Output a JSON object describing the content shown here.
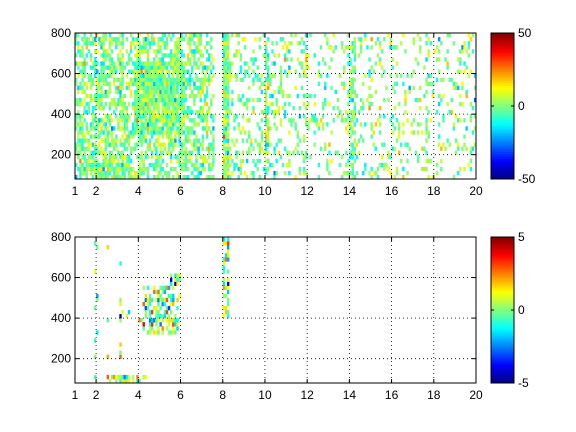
{
  "chart_data": [
    {
      "type": "heatmap",
      "title": "",
      "xlabel": "",
      "ylabel": "",
      "xlim": [
        1,
        20
      ],
      "ylim": [
        80,
        800
      ],
      "x_ticks": [
        1,
        2,
        4,
        6,
        8,
        10,
        12,
        14,
        16,
        18,
        20
      ],
      "x_tick_labels": [
        "1",
        "2",
        "4",
        "6",
        "8",
        "10",
        "12",
        "14",
        "16",
        "18",
        "20"
      ],
      "y_ticks": [
        200,
        400,
        600,
        800
      ],
      "y_tick_labels": [
        "200",
        "400",
        "600",
        "800"
      ],
      "grid": true,
      "colorbar": {
        "colormap": "jet",
        "clim": [
          -50,
          50
        ],
        "ticks": [
          -50,
          0,
          50
        ],
        "tick_labels": [
          "-50",
          "0",
          "50"
        ]
      },
      "mean_amplitude": 8,
      "regions": [
        {
          "x": [
            1.0,
            7.6
          ],
          "y": [
            80,
            800
          ],
          "density": 0.55
        },
        {
          "x": [
            3.8,
            6.2
          ],
          "y": [
            300,
            650
          ],
          "density": 0.9
        },
        {
          "x": [
            1.2,
            3.6
          ],
          "y": [
            80,
            200
          ],
          "density": 0.8
        },
        {
          "x": [
            8.0,
            9.5
          ],
          "y": [
            80,
            800
          ],
          "density": 0.25
        },
        {
          "x": [
            9.5,
            12.0
          ],
          "y": [
            80,
            800
          ],
          "density": 0.22
        },
        {
          "x": [
            12.0,
            20.0
          ],
          "y": [
            80,
            800
          ],
          "density": 0.16
        },
        {
          "x": [
            8.05,
            8.3
          ],
          "y": [
            80,
            800
          ],
          "density": 0.95
        },
        {
          "x": [
            10.0,
            10.2
          ],
          "y": [
            80,
            800
          ],
          "density": 0.6
        },
        {
          "x": [
            14.0,
            14.3
          ],
          "y": [
            80,
            800
          ],
          "density": 0.6
        }
      ]
    },
    {
      "type": "heatmap",
      "title": "",
      "xlabel": "",
      "ylabel": "",
      "xlim": [
        1,
        20
      ],
      "ylim": [
        80,
        800
      ],
      "x_ticks": [
        1,
        2,
        4,
        6,
        8,
        10,
        12,
        14,
        16,
        18,
        20
      ],
      "x_tick_labels": [
        "1",
        "2",
        "4",
        "6",
        "8",
        "10",
        "12",
        "14",
        "16",
        "18",
        "20"
      ],
      "y_ticks": [
        200,
        400,
        600,
        800
      ],
      "y_tick_labels": [
        "200",
        "400",
        "600",
        "800"
      ],
      "grid": true,
      "colorbar": {
        "colormap": "jet",
        "clim": [
          -5,
          5
        ],
        "ticks": [
          -5,
          0,
          5
        ],
        "tick_labels": [
          "-5",
          "0",
          "5"
        ]
      },
      "mean_amplitude": 1.6,
      "regions": [
        {
          "x": [
            4.2,
            5.9
          ],
          "y": [
            330,
            560
          ],
          "density": 0.55
        },
        {
          "x": [
            5.5,
            6.0
          ],
          "y": [
            480,
            620
          ],
          "density": 0.45
        },
        {
          "x": [
            1.9,
            2.05
          ],
          "y": [
            80,
            800
          ],
          "density": 0.18
        },
        {
          "x": [
            2.5,
            2.65
          ],
          "y": [
            80,
            800
          ],
          "density": 0.16
        },
        {
          "x": [
            3.1,
            3.2
          ],
          "y": [
            100,
            800
          ],
          "density": 0.12
        },
        {
          "x": [
            8.05,
            8.3
          ],
          "y": [
            400,
            800
          ],
          "density": 0.5
        },
        {
          "x": [
            2.5,
            4.5
          ],
          "y": [
            80,
            120
          ],
          "density": 0.5
        },
        {
          "x": [
            3.0,
            4.6
          ],
          "y": [
            360,
            430
          ],
          "density": 0.2
        }
      ]
    }
  ]
}
